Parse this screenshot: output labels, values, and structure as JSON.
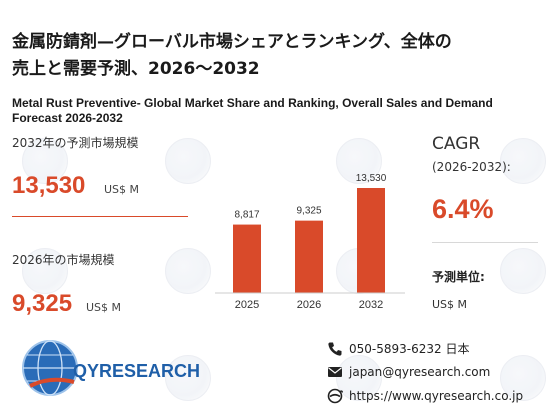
{
  "title_ja_line1": "金属防錆剤—グローバル市場シェアとランキング、全体の",
  "title_ja_line2": "売上と需要予測、2026～2032",
  "title_en_line1": "Metal Rust Preventive- Global Market Share and Ranking, Overall Sales and Demand",
  "title_en_line2": "Forecast 2026-2032",
  "left": {
    "label_2032": "2032年の予測市場規模",
    "value_2032": "13,530",
    "unit_2032": "US$ M",
    "label_2026": "2026年の市場規模",
    "value_2026": "9,325",
    "unit_2026": "US$ M"
  },
  "right": {
    "cagr_label": "CAGR",
    "cagr_period": "(2026-2032):",
    "cagr_value": "6.4%",
    "unit_label": "予測単位:",
    "unit_value": "US$ M"
  },
  "chart_data": {
    "type": "bar",
    "categories": [
      "2025",
      "2026",
      "2032"
    ],
    "values": [
      8817,
      9325,
      13530
    ],
    "value_labels": [
      "8,817",
      "9,325",
      "13,530"
    ],
    "ylim": [
      0,
      13530
    ],
    "grid": false,
    "color": "#d94a2a"
  },
  "logo": {
    "part1": "QY",
    "part2": "RESEARCH"
  },
  "contact": {
    "phone": "050-5893-6232 日本",
    "email": "japan@qyresearch.com",
    "web": "https://www.qyresearch.co.jp"
  },
  "colors": {
    "accent": "#d94a2a",
    "logo_blue": "#1f5fa8"
  }
}
